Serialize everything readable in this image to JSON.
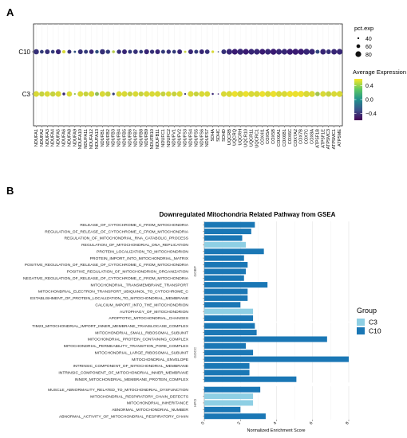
{
  "panels": {
    "a": {
      "label": "A"
    },
    "b": {
      "label": "B"
    }
  },
  "chart_data": [
    {
      "type": "scatter",
      "subtype": "dot-plot",
      "categories": [
        "NDUFA1",
        "NDUFA2",
        "NDUFA3",
        "NDUFA4",
        "NDUFA5",
        "NDUFA6",
        "NDUFA8",
        "NDUFA9",
        "NDUFA10",
        "NDUFA11",
        "NDUFA12",
        "NDUFA13",
        "NDUFB1",
        "NDUFB2",
        "NDUFB3",
        "NDUFB4",
        "NDUFB5",
        "NDUFB6",
        "NDUFB7",
        "NDUFB8",
        "NDUFB9",
        "NDUFB10",
        "NDUFB11",
        "NDUFC1",
        "NDUFC2",
        "NDUFV1",
        "NDUFV2",
        "NDUFS3",
        "NDUFS4",
        "NDUFS5",
        "NDUFS6",
        "NDUFS7",
        "SDHA",
        "SDHC",
        "SDHD",
        "UQCRB",
        "UQCRQ",
        "UQCRH",
        "UQCR10",
        "UQCR11",
        "UQCRC1",
        "COX4I1",
        "COX5A",
        "COX5B",
        "COX6A1",
        "COX6B1",
        "COX6C",
        "COX7A2",
        "COX7B",
        "COX7C",
        "COX8A",
        "ATP5F1B",
        "ATP5F1E",
        "ATP5MC3",
        "ATP5MC1",
        "ATP5ME"
      ],
      "groups": [
        "C10",
        "C3"
      ],
      "series": [
        {
          "group": "C10",
          "pct_exp": [
            75,
            60,
            70,
            60,
            72,
            55,
            62,
            45,
            70,
            62,
            68,
            58,
            75,
            65,
            50,
            66,
            70,
            62,
            68,
            60,
            72,
            65,
            70,
            62,
            66,
            60,
            70,
            45,
            70,
            62,
            70,
            68,
            48,
            35,
            70,
            80,
            80,
            82,
            80,
            80,
            80,
            80,
            80,
            82,
            80,
            80,
            82,
            82,
            82,
            82,
            80,
            62,
            78,
            70,
            78,
            80
          ],
          "avg_exp": [
            -0.45,
            -0.4,
            -0.45,
            -0.4,
            -0.5,
            0.5,
            -0.45,
            -0.3,
            -0.45,
            -0.4,
            -0.5,
            -0.3,
            -0.45,
            -0.4,
            0.4,
            -0.45,
            -0.5,
            -0.4,
            -0.45,
            -0.4,
            -0.5,
            -0.45,
            -0.5,
            -0.4,
            -0.45,
            -0.4,
            -0.5,
            0.45,
            -0.5,
            -0.4,
            -0.5,
            -0.45,
            0.5,
            -0.4,
            -0.45,
            -0.5,
            -0.55,
            -0.5,
            -0.55,
            -0.5,
            -0.5,
            -0.55,
            -0.5,
            -0.55,
            -0.5,
            -0.5,
            -0.55,
            -0.55,
            -0.55,
            -0.5,
            -0.5,
            -0.35,
            -0.5,
            -0.45,
            -0.5,
            -0.5
          ]
        },
        {
          "group": "C3",
          "pct_exp": [
            80,
            75,
            78,
            75,
            80,
            50,
            76,
            40,
            78,
            72,
            80,
            62,
            80,
            75,
            48,
            78,
            80,
            72,
            78,
            72,
            80,
            78,
            80,
            72,
            76,
            72,
            80,
            40,
            80,
            72,
            80,
            78,
            42,
            35,
            78,
            82,
            82,
            84,
            82,
            82,
            82,
            82,
            82,
            84,
            82,
            82,
            84,
            84,
            84,
            84,
            82,
            68,
            80,
            78,
            80,
            82
          ],
          "avg_exp": [
            0.5,
            0.45,
            0.5,
            0.45,
            0.5,
            -0.5,
            0.5,
            0.3,
            0.5,
            0.45,
            0.5,
            0.3,
            0.5,
            0.45,
            -0.4,
            0.5,
            0.5,
            0.45,
            0.5,
            0.45,
            0.5,
            0.5,
            0.5,
            0.45,
            0.5,
            0.45,
            0.5,
            -0.45,
            0.5,
            0.45,
            0.5,
            0.5,
            -0.5,
            -0.55,
            0.5,
            0.5,
            0.55,
            0.5,
            0.55,
            0.5,
            0.5,
            0.55,
            0.5,
            0.55,
            0.5,
            0.5,
            0.55,
            0.55,
            0.55,
            0.5,
            0.5,
            0.35,
            0.5,
            0.45,
            0.5,
            0.5
          ]
        }
      ],
      "size_legend": {
        "title": "pct.exp",
        "values": [
          40,
          60,
          80
        ]
      },
      "color_legend": {
        "title": "Average Expression",
        "ticks": [
          0.4,
          0.0,
          -0.4
        ],
        "tick_labels": [
          "0.4",
          "0.0",
          "−0.4"
        ],
        "range": [
          -0.6,
          0.6
        ]
      },
      "colors": {
        "low": "#3b0f70",
        "mid": "#21918c",
        "high": "#fde725"
      }
    },
    {
      "type": "bar",
      "orientation": "horizontal",
      "title": "Downregulated Mitochondria Related Pathway from GSEA",
      "xlabel": "Normalized Enrichment Score",
      "xlim": [
        0,
        8
      ],
      "xticks": [
        0,
        2,
        4,
        6,
        8
      ],
      "facets": [
        "GOBP",
        "GOCC",
        "HPO"
      ],
      "legend": {
        "title": "Group",
        "position": "right",
        "entries": [
          {
            "name": "C3",
            "color": "#8ecfe4"
          },
          {
            "name": "C10",
            "color": "#1a77b5"
          }
        ]
      },
      "bars": [
        {
          "facet": "GOBP",
          "label": "RELEASE_OF_CYTOCHROME_C_FROM_MITOCHONDRIA",
          "value": 2.8,
          "group": "C10"
        },
        {
          "facet": "GOBP",
          "label": "REGULATION_OF_RELEASE_OF_CYTOCHROME_C_FROM_MITOCHONDRIA",
          "value": 2.6,
          "group": "C10"
        },
        {
          "facet": "GOBP",
          "label": "REGULATION_OF_MITOCHONDRIAL_RNA_CATABOLIC_PROCESS",
          "value": 2.1,
          "group": "C10"
        },
        {
          "facet": "GOBP",
          "label": "REGULATION_OF_MITOCHONDRIAL_DNA_REPLICATION",
          "value": 2.3,
          "group": "C3"
        },
        {
          "facet": "GOBP",
          "label": "PROTEIN_LOCALIZATION_TO_MITOCHONDRION",
          "value": 3.3,
          "group": "C10"
        },
        {
          "facet": "GOBP",
          "label": "PROTEIN_IMPORT_INTO_MITOCHONDRIAL_MATRIX",
          "value": 2.2,
          "group": "C10"
        },
        {
          "facet": "GOBP",
          "label": "POSITIVE_REGULATION_OF_RELEASE_OF_CYTOCHROME_C_FROM_MITOCHONDRIA",
          "value": 2.4,
          "group": "C10"
        },
        {
          "facet": "GOBP",
          "label": "POSITIVE_REGULATION_OF_MITOCHONDRION_ORGANIZATION",
          "value": 2.3,
          "group": "C10"
        },
        {
          "facet": "GOBP",
          "label": "NEGATIVE_REGULATION_OF_RELEASE_OF_CYTOCHROME_C_FROM_MITOCHONDRIA",
          "value": 2.2,
          "group": "C10"
        },
        {
          "facet": "GOBP",
          "label": "MITOCHONDRIAL_TRANSMEMBRANE_TRANSPORT",
          "value": 3.5,
          "group": "C10"
        },
        {
          "facet": "GOBP",
          "label": "MITOCHONDRIAL_ELECTRON_TRANSPORT_UBIQUINOL_TO_CYTOCHROME_C",
          "value": 2.4,
          "group": "C10"
        },
        {
          "facet": "GOBP",
          "label": "ESTABLISHMENT_OF_PROTEIN_LOCALIZATION_TO_MITOCHONDRIAL_MEMBRANE",
          "value": 2.4,
          "group": "C10"
        },
        {
          "facet": "GOBP",
          "label": "CALCIUM_IMPORT_INTO_THE_MITOCHONDRION",
          "value": 2.0,
          "group": "C10"
        },
        {
          "facet": "GOBP",
          "label": "AUTOPHAGY_OF_MITOCHONDRION",
          "value": 2.7,
          "group": "C3"
        },
        {
          "facet": "GOBP",
          "label": "APOPTOTIC_MITOCHONDRIAL_CHANGES",
          "value": 2.7,
          "group": "C10"
        },
        {
          "facet": "GOCC",
          "label": "TIM23_MITOCHONDRIAL_IMPORT_INNER_MEMBRANE_TRANSLOCASE_COMPLEX",
          "value": 2.8,
          "group": "C10"
        },
        {
          "facet": "GOCC",
          "label": "MITOCHONDRIAL_SMALL_RIBOSOMAL_SUBUNIT",
          "value": 2.9,
          "group": "C10"
        },
        {
          "facet": "GOCC",
          "label": "MITOCHONDRIAL_PROTEIN_CONTAINING_COMPLEX",
          "value": 6.8,
          "group": "C10"
        },
        {
          "facet": "GOCC",
          "label": "MITOCHONDRIAL_PERMEABILITY_TRANSITION_PORE_COMPLEX",
          "value": 2.3,
          "group": "C10"
        },
        {
          "facet": "GOCC",
          "label": "MITOCHONDRIAL_LARGE_RIBOSOMAL_SUBUNIT",
          "value": 2.7,
          "group": "C10"
        },
        {
          "facet": "GOCC",
          "label": "MITOCHONDRIAL_ENVELOPE",
          "value": 8.0,
          "group": "C10"
        },
        {
          "facet": "GOCC",
          "label": "INTRINSIC_COMPONENT_OF_MITOCHONDRIAL_MEMBRANE",
          "value": 2.5,
          "group": "C10"
        },
        {
          "facet": "GOCC",
          "label": "INTRINSIC_COMPONENT_OF_MITOCHONDRIAL_INNER_MEMBRANE",
          "value": 2.5,
          "group": "C10"
        },
        {
          "facet": "GOCC",
          "label": "INNER_MITOCHONDRIAL_MEMBRANE_PROTEIN_COMPLEX",
          "value": 5.1,
          "group": "C10"
        },
        {
          "facet": "HPO",
          "label": "MUSCLE_ABNORMALITY_RELATED_TO_MITOCHONDRIAL_DYSFUNCTION",
          "value": 3.1,
          "group": "C10"
        },
        {
          "facet": "HPO",
          "label": "MITOCHONDRIAL_RESPIRATORY_CHAIN_DEFECTS",
          "value": 2.7,
          "group": "C3"
        },
        {
          "facet": "HPO",
          "label": "MITOCHONDRIAL_INHERITANCE",
          "value": 2.7,
          "group": "C3"
        },
        {
          "facet": "HPO",
          "label": "ABNORMAL_MITOCHONDRIAL_NUMBER",
          "value": 2.0,
          "group": "C10"
        },
        {
          "facet": "HPO",
          "label": "ABNORMAL_ACTIVITY_OF_MITOCHONDRIAL_RESPIRATORY_CHAIN",
          "value": 3.4,
          "group": "C10"
        }
      ]
    }
  ]
}
